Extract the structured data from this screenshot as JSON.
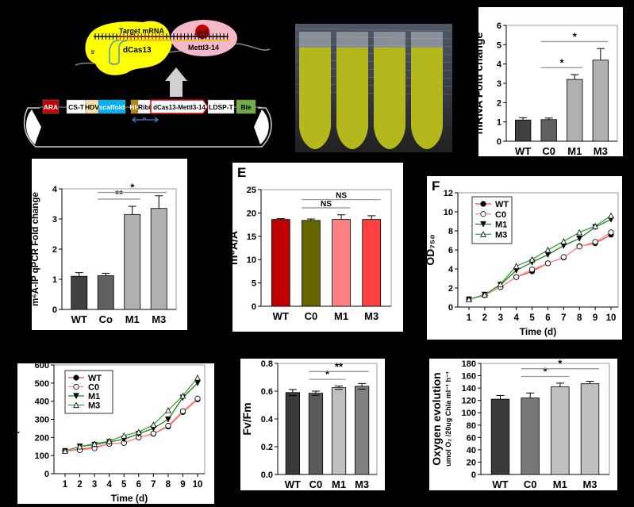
{
  "diagram": {
    "target_mrna": "Target mRNA",
    "dcas13": "dCas13",
    "mettl": "Mettl3-14",
    "m6a": "m⁶A",
    "five_prime": "5'",
    "plasmid_parts": [
      {
        "label": "ARA",
        "color": "#c00000",
        "text_color": "#ffffff"
      },
      {
        "label": "CS-T",
        "color": "#ffffff",
        "text_color": "#000000"
      },
      {
        "label": "HDV",
        "color": "#f8e0a8",
        "text_color": "#000000"
      },
      {
        "label": "scaffold",
        "color": "#00b0f0",
        "text_color": "#ffffff"
      },
      {
        "label": "HH",
        "color": "#b8860b",
        "text_color": "#ffffff"
      },
      {
        "label": "Ribi",
        "color": "#ffffff",
        "text_color": "#000000"
      },
      {
        "label": "dCas13-Mettl3-14",
        "color": "#ffffff",
        "text_color": "#000000",
        "border": "#e00000"
      },
      {
        "label": "LDSP-T",
        "color": "#ffffff",
        "text_color": "#000000"
      },
      {
        "label": "Ble",
        "color": "#70ad47",
        "text_color": "#000000"
      }
    ]
  },
  "photo": {
    "tubes": 4,
    "liquid_color": "#b5b81c"
  },
  "chart_data": [
    {
      "id": "C",
      "type": "bar",
      "title": "",
      "categories": [
        "WT",
        "C0",
        "M1",
        "M3"
      ],
      "values": [
        1.1,
        1.12,
        3.2,
        4.2
      ],
      "errors": [
        0.12,
        0.08,
        0.25,
        0.6
      ],
      "colors": [
        "#404040",
        "#606060",
        "#b0b0b0",
        "#b0b0b0"
      ],
      "ylabel": "mRNA Fold change",
      "ylim": [
        0,
        6
      ],
      "yticks": [
        0,
        1,
        2,
        3,
        4,
        5,
        6
      ],
      "significance": [
        {
          "from": 1,
          "to": 2,
          "label": "*"
        },
        {
          "from": 1,
          "to": 3,
          "label": "*"
        }
      ]
    },
    {
      "id": "D",
      "type": "bar",
      "title": "",
      "categories": [
        "WT",
        "Co",
        "M1",
        "M3"
      ],
      "values": [
        1.1,
        1.12,
        3.15,
        3.35
      ],
      "errors": [
        0.12,
        0.08,
        0.27,
        0.42
      ],
      "colors": [
        "#404040",
        "#606060",
        "#b0b0b0",
        "#b0b0b0"
      ],
      "ylabel": "m⁶A-IP qPCR Fold change",
      "ylim": [
        0,
        4
      ],
      "yticks": [
        0,
        1,
        2,
        3,
        4
      ],
      "significance": [
        {
          "from": 1,
          "to": 2,
          "label": "**"
        },
        {
          "from": 1,
          "to": 3,
          "label": "*"
        }
      ]
    },
    {
      "id": "E",
      "type": "bar",
      "panel_label": "E",
      "categories": [
        "WT",
        "C0",
        "M1",
        "M3"
      ],
      "values": [
        18.6,
        18.4,
        18.6,
        18.6
      ],
      "errors": [
        0.2,
        0.3,
        1.0,
        0.8
      ],
      "colors": [
        "#c00000",
        "#666600",
        "#ff8080",
        "#ff4040"
      ],
      "ylabel": "m⁶A/A",
      "ylim": [
        0,
        25
      ],
      "yticks": [
        0,
        5,
        10,
        15,
        20,
        25
      ],
      "significance": [
        {
          "from": 1,
          "to": 2,
          "label": "NS"
        },
        {
          "from": 1,
          "to": 3,
          "label": "NS"
        }
      ]
    },
    {
      "id": "F",
      "type": "line",
      "panel_label": "F",
      "x": [
        1,
        2,
        3,
        4,
        5,
        6,
        7,
        8,
        9,
        10
      ],
      "series": [
        {
          "name": "WT",
          "values": [
            0.8,
            1.25,
            2.1,
            3.15,
            3.75,
            4.6,
            5.2,
            6.4,
            6.7,
            7.6
          ],
          "color": "#ff4040",
          "marker": "circle-filled"
        },
        {
          "name": "C0",
          "values": [
            0.8,
            1.25,
            2.1,
            3.15,
            3.95,
            4.6,
            5.25,
            6.35,
            6.85,
            7.85
          ],
          "color": "#ff9090",
          "marker": "circle-open"
        },
        {
          "name": "M1",
          "values": [
            0.8,
            1.3,
            2.35,
            3.85,
            4.7,
            5.5,
            6.45,
            7.2,
            8.4,
            9.2
          ],
          "color": "#208020",
          "marker": "triangle-down-filled"
        },
        {
          "name": "M3",
          "values": [
            0.8,
            1.3,
            2.4,
            4.3,
            5.0,
            6.0,
            6.9,
            7.85,
            8.5,
            9.6
          ],
          "color": "#40a040",
          "marker": "triangle-up-open"
        }
      ],
      "xlabel": "Time (d)",
      "ylabel": "OD₇₅₀",
      "xlim": [
        1,
        10
      ],
      "ylim": [
        0,
        12
      ],
      "yticks": [
        0,
        2,
        4,
        6,
        8,
        10,
        12
      ],
      "legend": "top-left"
    },
    {
      "id": "G",
      "type": "line",
      "x": [
        1,
        2,
        3,
        4,
        5,
        6,
        7,
        8,
        9,
        10
      ],
      "series": [
        {
          "name": "WT",
          "values": [
            125,
            135,
            145,
            165,
            170,
            200,
            220,
            260,
            340,
            410
          ],
          "color": "#ff4040",
          "marker": "circle-filled"
        },
        {
          "name": "C0",
          "values": [
            125,
            130,
            140,
            165,
            170,
            200,
            222,
            265,
            345,
            415
          ],
          "color": "#ff9090",
          "marker": "circle-open"
        },
        {
          "name": "M1",
          "values": [
            125,
            150,
            160,
            175,
            190,
            220,
            250,
            300,
            420,
            500
          ],
          "color": "#208020",
          "marker": "triangle-down-filled"
        },
        {
          "name": "M3",
          "values": [
            125,
            150,
            165,
            180,
            210,
            230,
            270,
            350,
            430,
            530
          ],
          "color": "#40a040",
          "marker": "triangle-up-open"
        }
      ],
      "xlabel": "Time (d)",
      "ylabel": "Cell count (X 25X10⁴ cell/ml)",
      "xlim": [
        1,
        10
      ],
      "ylim": [
        0,
        600
      ],
      "yticks": [
        0,
        100,
        200,
        300,
        400,
        500,
        600
      ],
      "legend": "top-left"
    },
    {
      "id": "H",
      "type": "bar",
      "categories": [
        "WT",
        "C0",
        "M1",
        "M3"
      ],
      "values": [
        0.59,
        0.585,
        0.625,
        0.635
      ],
      "errors": [
        0.022,
        0.015,
        0.012,
        0.02
      ],
      "colors": [
        "#3a3a3a",
        "#5a5a5a",
        "#c0c0c0",
        "#808080"
      ],
      "ylabel": "Fv/Fm",
      "ylim": [
        0,
        0.8
      ],
      "yticks": [
        "0.0",
        "0.2",
        "0.4",
        "0.6",
        "0.8"
      ],
      "significance": [
        {
          "from": 1,
          "to": 2,
          "label": "*"
        },
        {
          "from": 1,
          "to": 3,
          "label": "**"
        }
      ]
    },
    {
      "id": "I",
      "type": "bar",
      "categories": [
        "WT",
        "C0",
        "M1",
        "M3"
      ],
      "values": [
        122,
        124,
        142,
        147
      ],
      "errors": [
        6,
        8,
        6,
        4
      ],
      "colors": [
        "#3a3a3a",
        "#777777",
        "#c0c0c0",
        "#c0c0c0"
      ],
      "ylabel": "Oxygen evolution",
      "ylabel2": "umol O₂ /20ug Chla ml⁻¹ h⁻¹",
      "ylim": [
        0,
        180
      ],
      "yticks": [
        0,
        20,
        40,
        60,
        80,
        100,
        120,
        140,
        160,
        180
      ],
      "significance": [
        {
          "from": 1,
          "to": 2,
          "label": "*"
        },
        {
          "from": 1,
          "to": 3,
          "label": "*"
        }
      ]
    }
  ]
}
